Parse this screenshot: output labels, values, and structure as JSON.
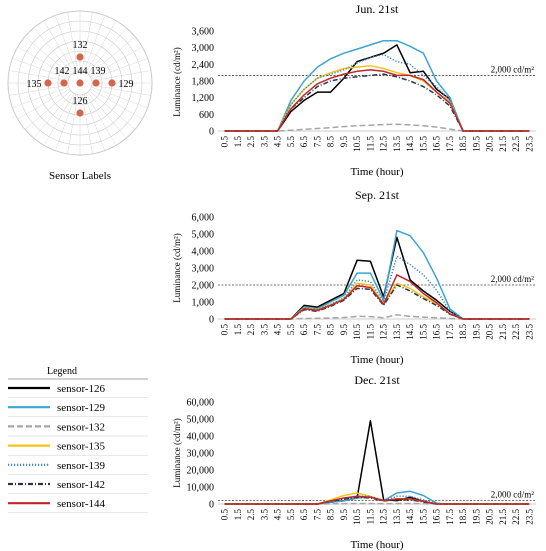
{
  "sensor_map": {
    "caption": "Sensor Labels",
    "dots": [
      {
        "label": "132",
        "slot": "n1"
      },
      {
        "label": "135",
        "slot": "w2"
      },
      {
        "label": "142",
        "slot": "w1"
      },
      {
        "label": "144",
        "slot": "c"
      },
      {
        "label": "139",
        "slot": "e1"
      },
      {
        "label": "129",
        "slot": "e2"
      },
      {
        "label": "126",
        "slot": "s1"
      }
    ],
    "dot_color": "#d4654f"
  },
  "legend": {
    "title": "Legend",
    "items": [
      {
        "label": "sensor-126",
        "color": "#000000",
        "dash": "solid"
      },
      {
        "label": "sensor-129",
        "color": "#3ba4d3",
        "dash": "solid"
      },
      {
        "label": "sensor-132",
        "color": "#a6a6a6",
        "dash": "long-dash"
      },
      {
        "label": "sensor-135",
        "color": "#f7c31a",
        "dash": "solid"
      },
      {
        "label": "sensor-139",
        "color": "#3a85b5",
        "dash": "dot"
      },
      {
        "label": "sensor-142",
        "color": "#2b3446",
        "dash": "dash-dot"
      },
      {
        "label": "sensor-144",
        "color": "#c0262d",
        "dash": "solid"
      }
    ]
  },
  "chart_data": [
    {
      "type": "line",
      "title": "Jun. 21st",
      "xlabel": "Time (hour)",
      "ylabel": "Luminance (cd/m²)",
      "ylim": [
        0,
        3600
      ],
      "yticks": [
        "0",
        "600",
        "1,200",
        "1,800",
        "2,400",
        "3,000",
        "3,600"
      ],
      "x": [
        "0.5",
        "1.5",
        "2.5",
        "3.5",
        "4.5",
        "5.5",
        "6.5",
        "7.5",
        "8.5",
        "9.5",
        "10.5",
        "11.5",
        "12.5",
        "13.5",
        "14.5",
        "15.5",
        "16.5",
        "17.5",
        "18.5",
        "19.5",
        "20.5",
        "21.5",
        "22.5",
        "23.5"
      ],
      "reference": {
        "value": 2000,
        "label": "2,000 cd/m²"
      },
      "series": [
        {
          "name": "sensor-126",
          "values": [
            0,
            0,
            0,
            0,
            0,
            700,
            1100,
            1400,
            1400,
            1900,
            2500,
            2650,
            2800,
            3100,
            2100,
            2150,
            1500,
            1150,
            0,
            0,
            0,
            0,
            0,
            0
          ]
        },
        {
          "name": "sensor-129",
          "values": [
            0,
            0,
            0,
            0,
            0,
            1100,
            1800,
            2300,
            2600,
            2800,
            2950,
            3100,
            3250,
            3250,
            3050,
            2800,
            1800,
            1200,
            0,
            0,
            0,
            0,
            0,
            0
          ]
        },
        {
          "name": "sensor-132",
          "values": [
            0,
            0,
            0,
            0,
            0,
            30,
            60,
            90,
            120,
            160,
            190,
            210,
            230,
            240,
            220,
            190,
            140,
            70,
            0,
            0,
            0,
            0,
            0,
            0
          ]
        },
        {
          "name": "sensor-135",
          "values": [
            0,
            0,
            0,
            0,
            0,
            950,
            1500,
            1900,
            2100,
            2250,
            2300,
            2350,
            2250,
            2100,
            2000,
            1800,
            1400,
            1050,
            0,
            0,
            0,
            0,
            0,
            0
          ]
        },
        {
          "name": "sensor-139",
          "values": [
            0,
            0,
            0,
            0,
            0,
            950,
            1500,
            1900,
            2050,
            2200,
            2450,
            2650,
            2750,
            2500,
            2400,
            2000,
            1600,
            1100,
            0,
            0,
            0,
            0,
            0,
            0
          ]
        },
        {
          "name": "sensor-142",
          "values": [
            0,
            0,
            0,
            0,
            0,
            800,
            1200,
            1600,
            1800,
            1900,
            1950,
            2000,
            2050,
            1950,
            1800,
            1600,
            1300,
            900,
            0,
            0,
            0,
            0,
            0,
            0
          ]
        },
        {
          "name": "sensor-144",
          "values": [
            0,
            0,
            0,
            0,
            0,
            800,
            1300,
            1700,
            1900,
            2050,
            2150,
            2200,
            2150,
            2000,
            2000,
            1850,
            1400,
            1000,
            0,
            0,
            0,
            0,
            0,
            0
          ]
        }
      ]
    },
    {
      "type": "line",
      "title": "Sep. 21st",
      "xlabel": "Time (hour)",
      "ylabel": "Luminance (cd/m²)",
      "ylim": [
        0,
        6000
      ],
      "yticks": [
        "0",
        "1,000",
        "2,000",
        "3,000",
        "4,000",
        "5,000",
        "6,000"
      ],
      "x": [
        "0.5",
        "1.5",
        "2.5",
        "3.5",
        "4.5",
        "5.5",
        "6.5",
        "7.5",
        "8.5",
        "9.5",
        "10.5",
        "11.5",
        "12.5",
        "13.5",
        "14.5",
        "15.5",
        "16.5",
        "17.5",
        "18.5",
        "19.5",
        "20.5",
        "21.5",
        "22.5",
        "23.5"
      ],
      "reference": {
        "value": 2000,
        "label": "2,000 cd/m²"
      },
      "series": [
        {
          "name": "sensor-126",
          "values": [
            0,
            0,
            0,
            0,
            0,
            0,
            800,
            700,
            1100,
            1500,
            3450,
            3400,
            1300,
            4800,
            2300,
            1650,
            1100,
            450,
            0,
            0,
            0,
            0,
            0,
            0
          ]
        },
        {
          "name": "sensor-129",
          "values": [
            0,
            0,
            0,
            0,
            0,
            0,
            700,
            600,
            1000,
            1400,
            2700,
            2700,
            1100,
            5200,
            4900,
            3900,
            2400,
            600,
            0,
            0,
            0,
            0,
            0,
            0
          ]
        },
        {
          "name": "sensor-132",
          "values": [
            0,
            0,
            0,
            0,
            0,
            0,
            30,
            40,
            60,
            90,
            150,
            140,
            70,
            250,
            150,
            110,
            70,
            30,
            0,
            0,
            0,
            0,
            0,
            0
          ]
        },
        {
          "name": "sensor-135",
          "values": [
            0,
            0,
            0,
            0,
            0,
            0,
            650,
            550,
            850,
            1200,
            2100,
            2000,
            900,
            2100,
            1800,
            1300,
            900,
            300,
            0,
            0,
            0,
            0,
            0,
            0
          ]
        },
        {
          "name": "sensor-139",
          "values": [
            0,
            0,
            0,
            0,
            0,
            0,
            650,
            550,
            850,
            1250,
            2300,
            2200,
            1000,
            3700,
            3200,
            2600,
            1700,
            450,
            0,
            0,
            0,
            0,
            0,
            0
          ]
        },
        {
          "name": "sensor-142",
          "values": [
            0,
            0,
            0,
            0,
            0,
            0,
            550,
            450,
            750,
            1100,
            1800,
            1750,
            800,
            2000,
            1650,
            1200,
            800,
            280,
            0,
            0,
            0,
            0,
            0,
            0
          ]
        },
        {
          "name": "sensor-144",
          "values": [
            0,
            0,
            0,
            0,
            0,
            0,
            600,
            500,
            800,
            1150,
            1950,
            1850,
            850,
            2600,
            2200,
            1500,
            950,
            300,
            0,
            0,
            0,
            0,
            0,
            0
          ]
        }
      ]
    },
    {
      "type": "line",
      "title": "Dec. 21st",
      "xlabel": "Time (hour)",
      "ylabel": "Luminance (cd/m²)",
      "ylim": [
        0,
        60000
      ],
      "yticks": [
        "0",
        "10,000",
        "20,000",
        "30,000",
        "40,000",
        "50,000",
        "60,000"
      ],
      "x": [
        "0.5",
        "1.5",
        "2.5",
        "3.5",
        "4.5",
        "5.5",
        "6.5",
        "7.5",
        "8.5",
        "9.5",
        "10.5",
        "11.5",
        "12.5",
        "13.5",
        "14.5",
        "15.5",
        "16.5",
        "17.5",
        "18.5",
        "19.5",
        "20.5",
        "21.5",
        "22.5",
        "23.5"
      ],
      "reference": {
        "value": 2000,
        "label": "2,000 cd/m²"
      },
      "series": [
        {
          "name": "sensor-126",
          "values": [
            0,
            0,
            0,
            0,
            0,
            0,
            0,
            0,
            1000,
            2000,
            3500,
            49000,
            2500,
            2000,
            4000,
            1500,
            0,
            0,
            0,
            0,
            0,
            0,
            0,
            0
          ]
        },
        {
          "name": "sensor-129",
          "values": [
            0,
            0,
            0,
            0,
            0,
            0,
            0,
            0,
            1000,
            1800,
            3500,
            4000,
            2000,
            6500,
            7500,
            5000,
            500,
            0,
            0,
            0,
            0,
            0,
            0,
            0
          ]
        },
        {
          "name": "sensor-132",
          "values": [
            0,
            0,
            0,
            0,
            0,
            0,
            0,
            0,
            100,
            200,
            300,
            300,
            200,
            300,
            300,
            200,
            0,
            0,
            0,
            0,
            0,
            0,
            0,
            0
          ]
        },
        {
          "name": "sensor-135",
          "values": [
            0,
            0,
            0,
            0,
            0,
            0,
            0,
            0,
            2500,
            5000,
            6500,
            4500,
            2000,
            3000,
            3000,
            1500,
            0,
            0,
            0,
            0,
            0,
            0,
            0,
            0
          ]
        },
        {
          "name": "sensor-139",
          "values": [
            0,
            0,
            0,
            0,
            0,
            0,
            0,
            0,
            1500,
            3000,
            4500,
            4500,
            2000,
            4500,
            4500,
            2500,
            200,
            0,
            0,
            0,
            0,
            0,
            0,
            0
          ]
        },
        {
          "name": "sensor-142",
          "values": [
            0,
            0,
            0,
            0,
            0,
            0,
            0,
            0,
            1500,
            3000,
            4000,
            3500,
            1800,
            2500,
            2500,
            1200,
            0,
            0,
            0,
            0,
            0,
            0,
            0,
            0
          ]
        },
        {
          "name": "sensor-144",
          "values": [
            0,
            0,
            0,
            0,
            0,
            0,
            0,
            0,
            1800,
            3500,
            4500,
            4000,
            2000,
            3000,
            3000,
            1500,
            0,
            0,
            0,
            0,
            0,
            0,
            0,
            0
          ]
        }
      ]
    }
  ]
}
